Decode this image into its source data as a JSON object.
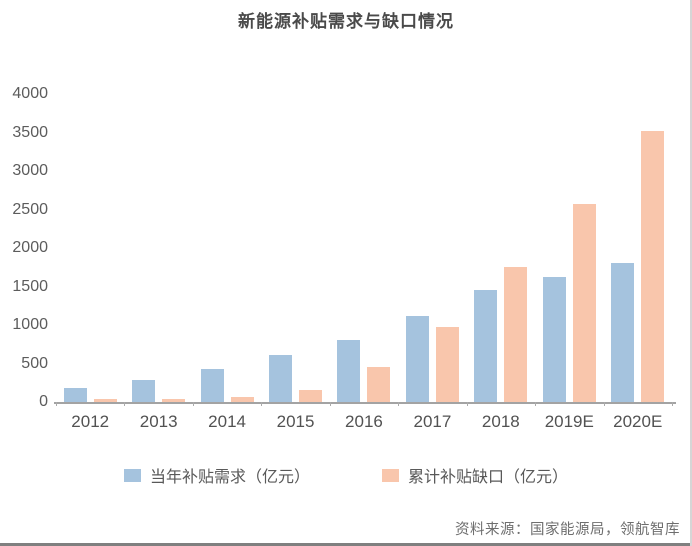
{
  "page": {
    "source": "资料来源：国家能源局，领航智库"
  },
  "colors": {
    "demand_blue": "#a5c3de",
    "gap_pink": "#f9c6ac",
    "axis_gray": "#a3a3a3",
    "text_gray": "#595959"
  },
  "chart_data": {
    "type": "bar",
    "title": "新能源补贴需求与缺口情况",
    "categories": [
      "2012",
      "2013",
      "2014",
      "2015",
      "2016",
      "2017",
      "2018",
      "2019E",
      "2020E"
    ],
    "series": [
      {
        "name": "当年补贴需求（亿元）",
        "color": "#a5c3de",
        "values": [
          180,
          280,
          430,
          610,
          800,
          1120,
          1460,
          1620,
          1800
        ]
      },
      {
        "name": "累计补贴缺口（亿元）",
        "color": "#f9c6ac",
        "values": [
          40,
          40,
          60,
          160,
          460,
          970,
          1750,
          2570,
          3520
        ]
      }
    ],
    "xlabel": "",
    "ylabel": "",
    "ylim": [
      0,
      4000
    ],
    "ytick_step": 500,
    "grid": false,
    "legend_position": "bottom",
    "unit": "亿元"
  }
}
